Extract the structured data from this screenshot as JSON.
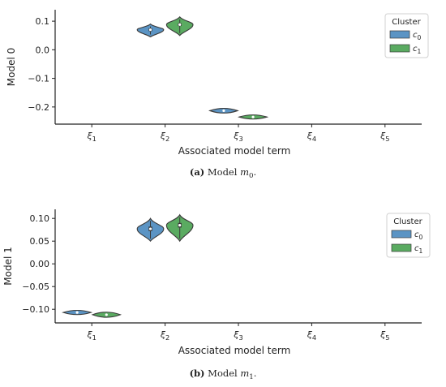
{
  "chart_data": [
    {
      "type": "violin",
      "caption_prefix": "(a)",
      "caption_text": "Model",
      "caption_var": "m",
      "caption_sub": "0",
      "ylabel": "Model 0",
      "xlabel": "Associated model term",
      "ylim": [
        -0.26,
        0.14
      ],
      "yticks": [
        0.1,
        0.0,
        -0.1,
        -0.2
      ],
      "ytick_labels": [
        "0.1",
        "0.0",
        "−0.1",
        "−0.2"
      ],
      "categories": [
        "ξ1",
        "ξ2",
        "ξ3",
        "ξ4",
        "ξ5"
      ],
      "category_sym": "ξ",
      "category_sub": [
        "1",
        "2",
        "3",
        "4",
        "5"
      ],
      "legend": {
        "title": "Cluster",
        "placement": "top-right",
        "entries": [
          {
            "sym": "c",
            "sub": "0",
            "color": "#5b94c4"
          },
          {
            "sym": "c",
            "sub": "1",
            "color": "#5aab61"
          }
        ]
      },
      "series": [
        {
          "name": "c0",
          "color": "#5b94c4",
          "violins": [
            {
              "category": "ξ2",
              "center": 0.07,
              "min": 0.045,
              "max": 0.09,
              "q1": 0.065,
              "q3": 0.075,
              "median": 0.07
            },
            {
              "category": "ξ3",
              "center": -0.213,
              "min": -0.217,
              "max": -0.209,
              "q1": -0.214,
              "q3": -0.212,
              "median": -0.213
            }
          ]
        },
        {
          "name": "c1",
          "color": "#5aab61",
          "violins": [
            {
              "category": "ξ2",
              "center": 0.088,
              "min": 0.05,
              "max": 0.115,
              "q1": 0.083,
              "q3": 0.093,
              "median": 0.088
            },
            {
              "category": "ξ3",
              "center": -0.235,
              "min": -0.238,
              "max": -0.232,
              "q1": -0.236,
              "q3": -0.234,
              "median": -0.235
            }
          ]
        }
      ]
    },
    {
      "type": "violin",
      "caption_prefix": "(b)",
      "caption_text": "Model",
      "caption_var": "m",
      "caption_sub": "1",
      "ylabel": "Model 1",
      "xlabel": "Associated model term",
      "ylim": [
        -0.13,
        0.12
      ],
      "yticks": [
        0.1,
        0.05,
        0.0,
        -0.05,
        -0.1
      ],
      "ytick_labels": [
        "0.10",
        "0.05",
        "0.00",
        "−0.05",
        "−0.10"
      ],
      "categories": [
        "ξ1",
        "ξ2",
        "ξ3",
        "ξ4",
        "ξ5"
      ],
      "category_sym": "ξ",
      "category_sub": [
        "1",
        "2",
        "3",
        "4",
        "5"
      ],
      "legend": {
        "title": "Cluster",
        "placement": "top-right",
        "entries": [
          {
            "sym": "c",
            "sub": "0",
            "color": "#5b94c4"
          },
          {
            "sym": "c",
            "sub": "1",
            "color": "#5aab61"
          }
        ]
      },
      "series": [
        {
          "name": "c0",
          "color": "#5b94c4",
          "violins": [
            {
              "category": "ξ1",
              "center": -0.107,
              "min": -0.109,
              "max": -0.105,
              "q1": -0.108,
              "q3": -0.106,
              "median": -0.107
            },
            {
              "category": "ξ2",
              "center": 0.077,
              "min": 0.05,
              "max": 0.1,
              "q1": 0.072,
              "q3": 0.082,
              "median": 0.077
            }
          ]
        },
        {
          "name": "c1",
          "color": "#5aab61",
          "violins": [
            {
              "category": "ξ1",
              "center": -0.112,
              "min": -0.115,
              "max": -0.109,
              "q1": -0.113,
              "q3": -0.111,
              "median": -0.112
            },
            {
              "category": "ξ2",
              "center": 0.085,
              "min": 0.05,
              "max": 0.108,
              "q1": 0.08,
              "q3": 0.09,
              "median": 0.085
            }
          ]
        }
      ]
    }
  ]
}
